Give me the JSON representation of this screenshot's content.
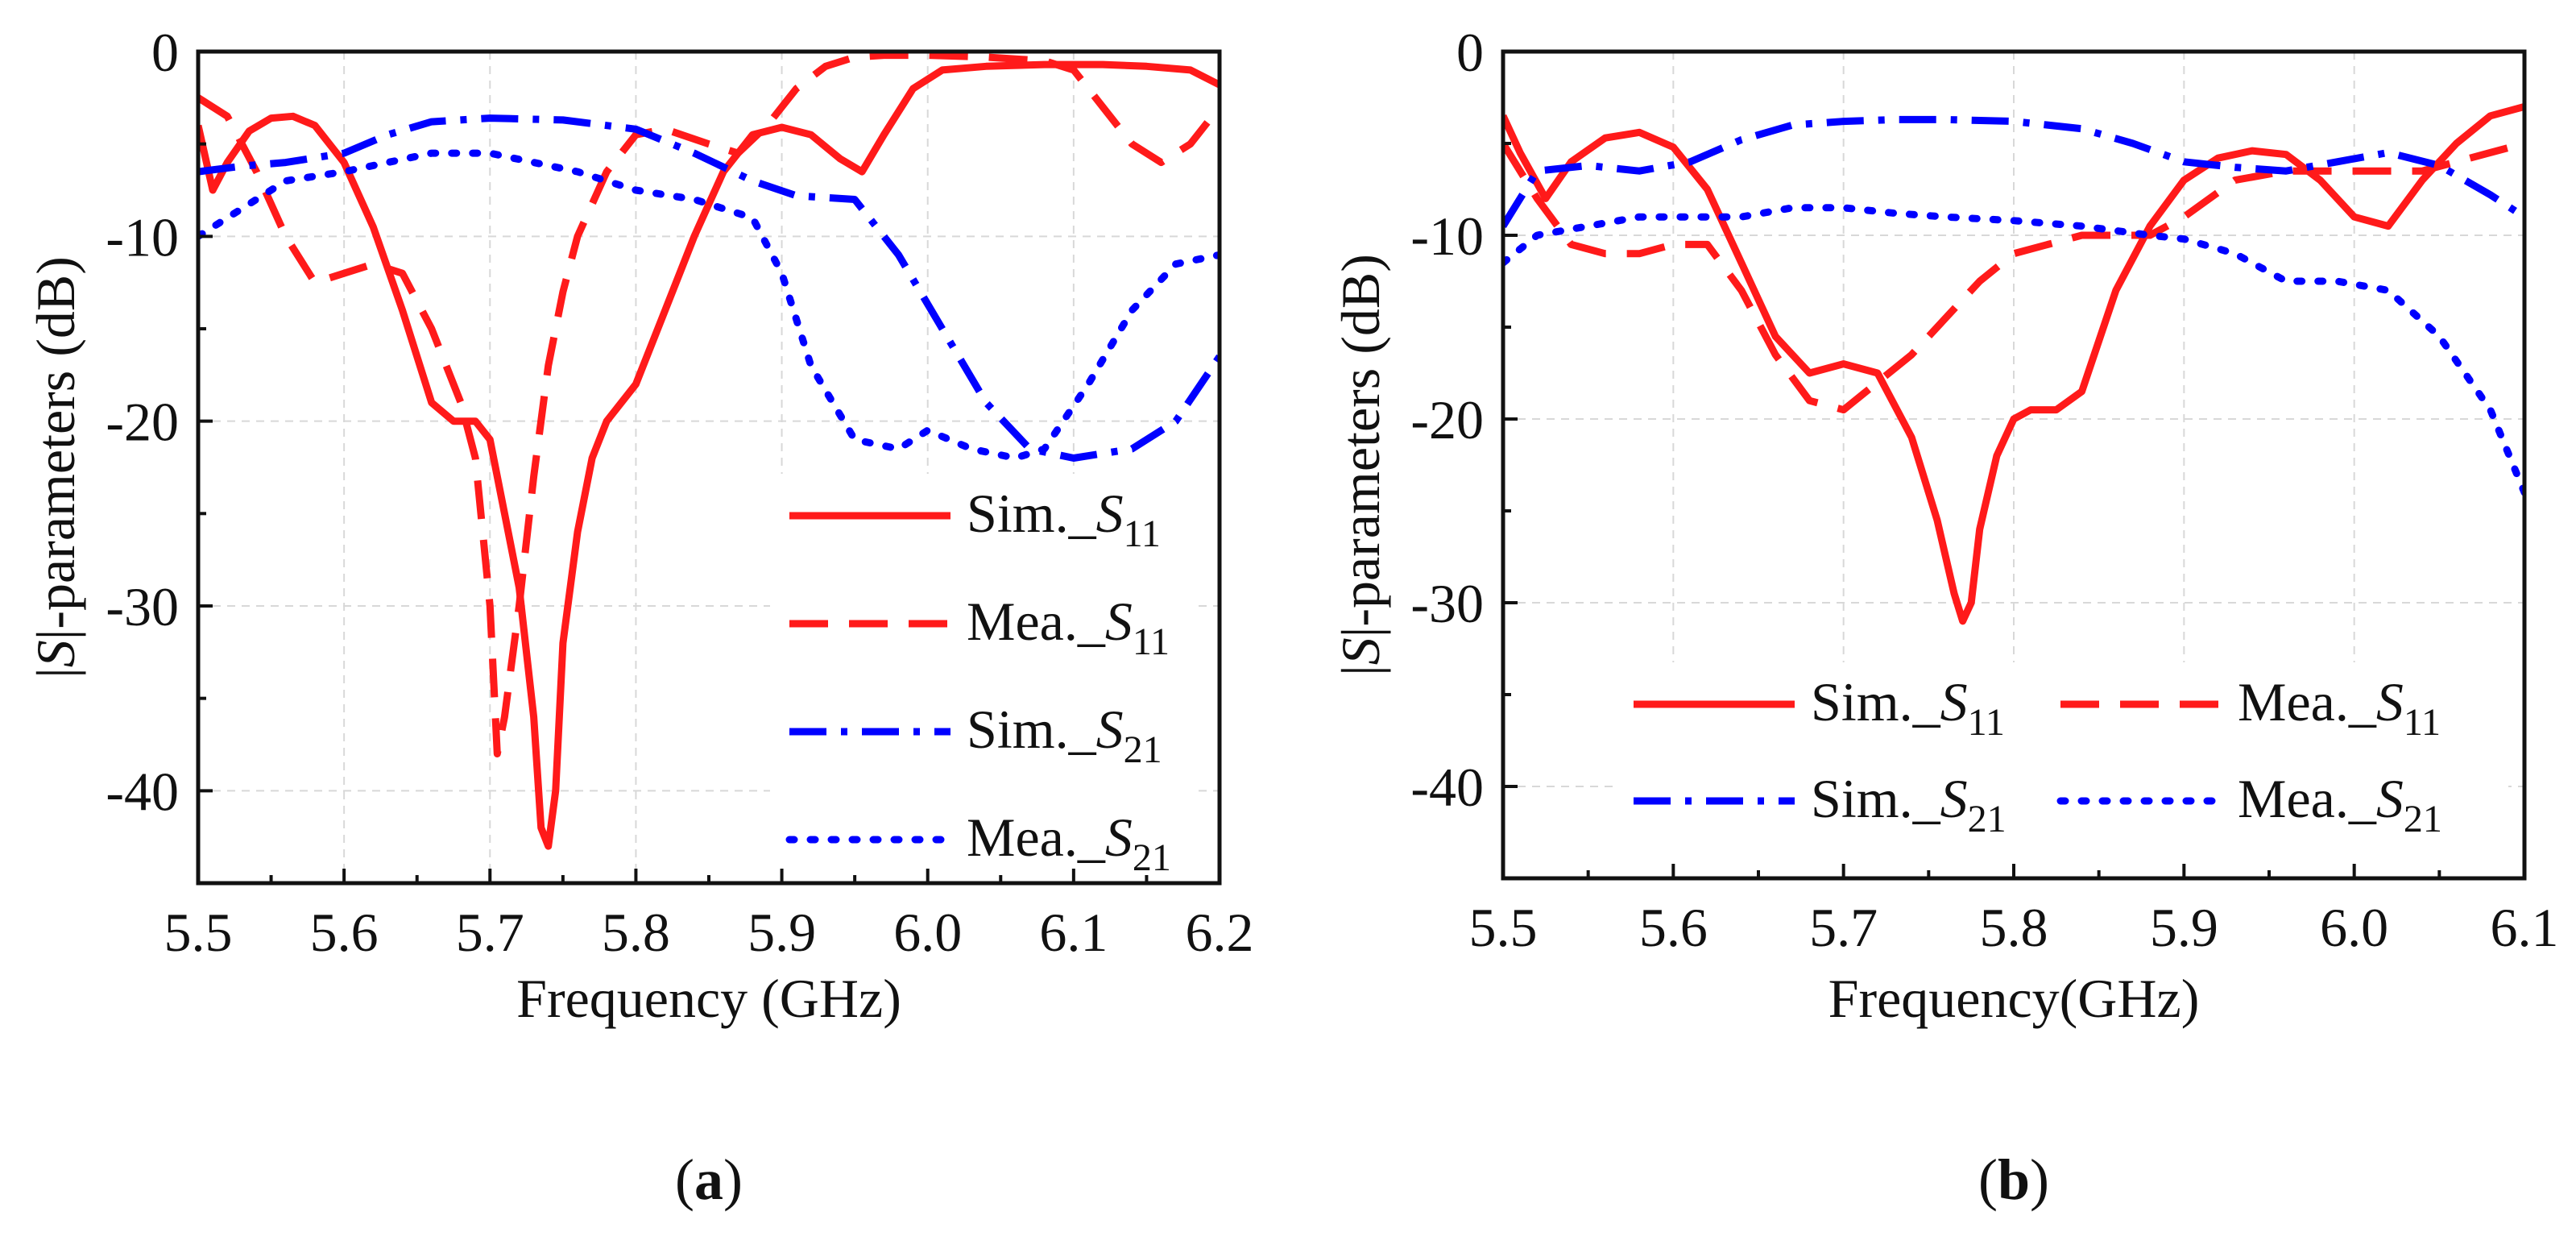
{
  "chart_data": [
    {
      "type": "line",
      "panel_label": "a",
      "xlabel": "Frequency (GHz)",
      "ylabel_parts": [
        "|",
        "S",
        "|-parameters (dB)"
      ],
      "xlim": [
        5.5,
        6.2
      ],
      "ylim": [
        -45,
        0
      ],
      "xticks": [
        5.5,
        5.6,
        5.7,
        5.8,
        5.9,
        6.0,
        6.1,
        6.2
      ],
      "xtick_labels": [
        "5.5",
        "5.6",
        "5.7",
        "5.8",
        "5.9",
        "6.0",
        "6.1",
        "6.2"
      ],
      "yticks": [
        0,
        -10,
        -20,
        -30,
        -40
      ],
      "ytick_labels": [
        "0",
        "-10",
        "-20",
        "-30",
        "-40"
      ],
      "grid": true,
      "legend_placement": "bottom-right",
      "legend_columns": 1,
      "series": [
        {
          "name": "Sim._S11",
          "label_prefix": "Sim._",
          "label_italic": "S",
          "label_sub": "11",
          "color": "#ff1a1a",
          "dash": "solid",
          "x": [
            5.5,
            5.51,
            5.52,
            5.535,
            5.55,
            5.565,
            5.58,
            5.6,
            5.62,
            5.64,
            5.66,
            5.675,
            5.69,
            5.7,
            5.71,
            5.72,
            5.73,
            5.735,
            5.74,
            5.745,
            5.75,
            5.76,
            5.77,
            5.78,
            5.8,
            5.82,
            5.84,
            5.86,
            5.88,
            5.9,
            5.92,
            5.94,
            5.955,
            5.97,
            5.99,
            6.01,
            6.04,
            6.08,
            6.12,
            6.15,
            6.18,
            6.2
          ],
          "y": [
            -4,
            -7.5,
            -6,
            -4.3,
            -3.6,
            -3.5,
            -4,
            -6,
            -9.5,
            -14,
            -19,
            -20,
            -20,
            -21,
            -25,
            -29,
            -36,
            -42,
            -43,
            -40,
            -32,
            -26,
            -22,
            -20,
            -18,
            -14,
            -10,
            -6.5,
            -4.5,
            -4.1,
            -4.5,
            -5.8,
            -6.5,
            -4.5,
            -2,
            -1,
            -0.8,
            -0.7,
            -0.7,
            -0.8,
            -1,
            -1.8
          ]
        },
        {
          "name": "Mea._S11",
          "label_prefix": "Mea._",
          "label_italic": "S",
          "label_sub": "11",
          "color": "#ff1a1a",
          "dash": "long-dash",
          "x": [
            5.5,
            5.52,
            5.54,
            5.56,
            5.58,
            5.6,
            5.62,
            5.64,
            5.66,
            5.68,
            5.69,
            5.7,
            5.705,
            5.71,
            5.72,
            5.73,
            5.74,
            5.75,
            5.76,
            5.78,
            5.8,
            5.82,
            5.85,
            5.87,
            5.89,
            5.91,
            5.93,
            5.95,
            5.97,
            6.0,
            6.04,
            6.08,
            6.1,
            6.12,
            6.14,
            6.16,
            6.18,
            6.2
          ],
          "y": [
            -2.5,
            -3.5,
            -6.5,
            -10,
            -12.5,
            -12,
            -11.5,
            -12,
            -15,
            -19,
            -22,
            -30,
            -38,
            -36,
            -30,
            -23,
            -17,
            -13,
            -10,
            -6.5,
            -4.5,
            -4.2,
            -5,
            -5.5,
            -4,
            -2,
            -0.8,
            -0.3,
            -0.2,
            -0.2,
            -0.3,
            -0.5,
            -1,
            -3,
            -5,
            -6,
            -5,
            -3
          ]
        },
        {
          "name": "Sim._S21",
          "label_prefix": "Sim._",
          "label_italic": "S",
          "label_sub": "21",
          "color": "#0000ff",
          "dash": "dash-dot",
          "x": [
            5.5,
            5.53,
            5.56,
            5.6,
            5.63,
            5.66,
            5.7,
            5.75,
            5.8,
            5.84,
            5.88,
            5.91,
            5.95,
            5.98,
            6.01,
            6.04,
            6.07,
            6.1,
            6.14,
            6.17,
            6.2
          ],
          "y": [
            -6.5,
            -6.2,
            -6,
            -5.5,
            -4.5,
            -3.8,
            -3.6,
            -3.7,
            -4.2,
            -5.5,
            -7,
            -7.8,
            -8,
            -11,
            -15,
            -19,
            -21.5,
            -22,
            -21.5,
            -20,
            -16.5
          ]
        },
        {
          "name": "Mea._S21",
          "label_prefix": "Mea._",
          "label_italic": "S",
          "label_sub": "21",
          "color": "#0000ff",
          "dash": "dotted",
          "x": [
            5.5,
            5.53,
            5.56,
            5.6,
            5.63,
            5.66,
            5.7,
            5.73,
            5.76,
            5.8,
            5.84,
            5.88,
            5.9,
            5.92,
            5.95,
            5.98,
            6.0,
            6.03,
            6.06,
            6.08,
            6.11,
            6.14,
            6.17,
            6.2
          ],
          "y": [
            -10,
            -8.5,
            -7,
            -6.5,
            -6,
            -5.5,
            -5.5,
            -6,
            -6.5,
            -7.5,
            -8,
            -9,
            -12,
            -17,
            -21,
            -21.5,
            -20.5,
            -21.5,
            -22,
            -21.5,
            -18,
            -14,
            -11.5,
            -11
          ]
        }
      ]
    },
    {
      "type": "line",
      "panel_label": "b",
      "xlabel": "Frequency(GHz)",
      "ylabel_parts": [
        "|",
        "S",
        "|-parameters (dB)"
      ],
      "xlim": [
        5.5,
        6.1
      ],
      "ylim": [
        -45,
        0
      ],
      "xticks": [
        5.5,
        5.6,
        5.7,
        5.8,
        5.9,
        6.0,
        6.1
      ],
      "xtick_labels": [
        "5.5",
        "5.6",
        "5.7",
        "5.8",
        "5.9",
        "6.0",
        "6.1"
      ],
      "yticks": [
        0,
        -10,
        -20,
        -30,
        -40
      ],
      "ytick_labels": [
        "0",
        "-10",
        "-20",
        "-30",
        "-40"
      ],
      "grid": true,
      "legend_placement": "bottom",
      "legend_columns": 2,
      "series": [
        {
          "name": "Sim._S11",
          "label_prefix": "Sim._",
          "label_italic": "S",
          "label_sub": "11",
          "color": "#ff1a1a",
          "dash": "solid",
          "x": [
            5.5,
            5.51,
            5.525,
            5.54,
            5.56,
            5.58,
            5.6,
            5.62,
            5.64,
            5.66,
            5.68,
            5.7,
            5.72,
            5.74,
            5.755,
            5.765,
            5.77,
            5.775,
            5.78,
            5.79,
            5.8,
            5.81,
            5.825,
            5.84,
            5.86,
            5.88,
            5.9,
            5.92,
            5.94,
            5.96,
            5.98,
            6.0,
            6.02,
            6.04,
            6.06,
            6.08,
            6.1
          ],
          "y": [
            -3.5,
            -5.5,
            -8,
            -6,
            -4.7,
            -4.4,
            -5.2,
            -7.5,
            -11.5,
            -15.5,
            -17.5,
            -17,
            -17.5,
            -21,
            -25.5,
            -29.5,
            -31,
            -30,
            -26,
            -22,
            -20,
            -19.5,
            -19.5,
            -18.5,
            -13,
            -9.5,
            -7,
            -5.8,
            -5.4,
            -5.6,
            -7,
            -9,
            -9.5,
            -7,
            -5,
            -3.5,
            -3
          ]
        },
        {
          "name": "Mea._S11",
          "label_prefix": "Mea._",
          "label_italic": "S",
          "label_sub": "11",
          "color": "#ff1a1a",
          "dash": "long-dash",
          "x": [
            5.5,
            5.52,
            5.54,
            5.56,
            5.58,
            5.6,
            5.62,
            5.64,
            5.66,
            5.68,
            5.7,
            5.72,
            5.74,
            5.76,
            5.78,
            5.8,
            5.82,
            5.84,
            5.86,
            5.88,
            5.9,
            5.93,
            5.96,
            6.0,
            6.04,
            6.08,
            6.1
          ],
          "y": [
            -5,
            -8,
            -10.5,
            -11,
            -11,
            -10.5,
            -10.5,
            -13,
            -16.5,
            -19,
            -19.5,
            -18,
            -16.5,
            -14.5,
            -12.5,
            -11,
            -10.5,
            -10,
            -10,
            -10,
            -9,
            -7,
            -6.5,
            -6.5,
            -6.5,
            -5.5,
            -5
          ]
        },
        {
          "name": "Sim._S21",
          "label_prefix": "Sim._",
          "label_italic": "S",
          "label_sub": "21",
          "color": "#0000ff",
          "dash": "dash-dot",
          "x": [
            5.5,
            5.52,
            5.55,
            5.58,
            5.61,
            5.64,
            5.67,
            5.7,
            5.73,
            5.76,
            5.8,
            5.84,
            5.87,
            5.9,
            5.93,
            5.96,
            5.99,
            6.02,
            6.05,
            6.08,
            6.1
          ],
          "y": [
            -9.5,
            -6.5,
            -6.2,
            -6.5,
            -6,
            -4.8,
            -4,
            -3.8,
            -3.7,
            -3.7,
            -3.8,
            -4.2,
            -5,
            -6,
            -6.3,
            -6.5,
            -6,
            -5.5,
            -6.2,
            -7.8,
            -9
          ]
        },
        {
          "name": "Mea._S21",
          "label_prefix": "Mea._",
          "label_italic": "S",
          "label_sub": "21",
          "color": "#0000ff",
          "dash": "dotted",
          "x": [
            5.5,
            5.52,
            5.55,
            5.58,
            5.61,
            5.64,
            5.67,
            5.7,
            5.73,
            5.76,
            5.8,
            5.84,
            5.88,
            5.9,
            5.93,
            5.96,
            5.99,
            6.02,
            6.05,
            6.08,
            6.1
          ],
          "y": [
            -11.5,
            -10,
            -9.5,
            -9,
            -9,
            -9,
            -8.5,
            -8.5,
            -8.8,
            -9,
            -9.2,
            -9.5,
            -10,
            -10.2,
            -11,
            -12.5,
            -12.5,
            -13,
            -15.5,
            -19.5,
            -24
          ]
        }
      ]
    }
  ]
}
